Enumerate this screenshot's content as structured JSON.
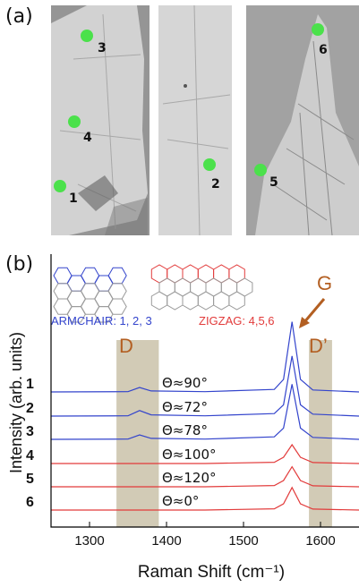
{
  "panel_a": {
    "label": "(a)",
    "images": [
      {
        "markers": [
          {
            "label": "3"
          },
          {
            "label": "4"
          },
          {
            "label": "1"
          }
        ]
      },
      {
        "markers": [
          {
            "label": "2"
          }
        ]
      },
      {
        "markers": [
          {
            "label": "6"
          },
          {
            "label": "5"
          }
        ]
      }
    ],
    "marker_color": "#4be14b"
  },
  "panel_b": {
    "label": "(b)",
    "legend": {
      "armchair_text": "ARMCHAIR: 1, 2, 3",
      "zigzag_text": "ZIGZAG: 4,5,6",
      "armchair_color": "#3344cc",
      "zigzag_color": "#e23b3b"
    },
    "peak_labels": {
      "D": "D",
      "G": "G",
      "D_prime": "D’"
    },
    "band_color": "#d2cbb6",
    "peak_label_color": "#b35f22"
  },
  "chart_data": {
    "type": "line",
    "xlabel": "Raman Shift (cm⁻¹)",
    "ylabel": "Intensity (arb. units)",
    "xlim": [
      1250,
      1650
    ],
    "x_ticks": [
      1300,
      1400,
      1500,
      1600
    ],
    "y_ticks": [],
    "shaded_bands": [
      {
        "name": "D",
        "range": [
          1335,
          1390
        ]
      },
      {
        "name": "D’",
        "range": [
          1585,
          1615
        ]
      }
    ],
    "series": [
      {
        "name": "1",
        "angle": "Θ≈90°",
        "color": "#3344cc",
        "values": [
          [
            1250,
            0.0
          ],
          [
            1350,
            0.01
          ],
          [
            1365,
            0.18
          ],
          [
            1380,
            0.04
          ],
          [
            1450,
            0.01
          ],
          [
            1540,
            0.1
          ],
          [
            1552,
            0.5
          ],
          [
            1563,
            2.8
          ],
          [
            1574,
            0.5
          ],
          [
            1590,
            0.08
          ],
          [
            1650,
            0.0
          ]
        ]
      },
      {
        "name": "2",
        "angle": "Θ≈72°",
        "color": "#3344cc",
        "values": [
          [
            1250,
            0.0
          ],
          [
            1350,
            0.01
          ],
          [
            1365,
            0.22
          ],
          [
            1380,
            0.05
          ],
          [
            1450,
            0.01
          ],
          [
            1540,
            0.1
          ],
          [
            1552,
            0.45
          ],
          [
            1563,
            2.4
          ],
          [
            1574,
            0.45
          ],
          [
            1590,
            0.08
          ],
          [
            1650,
            0.0
          ]
        ]
      },
      {
        "name": "3",
        "angle": "Θ≈78°",
        "color": "#3344cc",
        "values": [
          [
            1250,
            0.0
          ],
          [
            1350,
            0.01
          ],
          [
            1365,
            0.18
          ],
          [
            1380,
            0.04
          ],
          [
            1450,
            0.01
          ],
          [
            1540,
            0.1
          ],
          [
            1552,
            0.45
          ],
          [
            1563,
            2.2
          ],
          [
            1574,
            0.45
          ],
          [
            1590,
            0.08
          ],
          [
            1650,
            0.0
          ]
        ]
      },
      {
        "name": "4",
        "angle": "Θ≈100°",
        "color": "#e23b3b",
        "values": [
          [
            1250,
            0.0
          ],
          [
            1350,
            0.0
          ],
          [
            1450,
            0.0
          ],
          [
            1540,
            0.05
          ],
          [
            1552,
            0.25
          ],
          [
            1563,
            0.75
          ],
          [
            1574,
            0.25
          ],
          [
            1590,
            0.04
          ],
          [
            1650,
            0.0
          ]
        ]
      },
      {
        "name": "5",
        "angle": "Θ≈120°",
        "color": "#e23b3b",
        "values": [
          [
            1250,
            0.0
          ],
          [
            1350,
            0.0
          ],
          [
            1450,
            0.0
          ],
          [
            1540,
            0.05
          ],
          [
            1552,
            0.25
          ],
          [
            1563,
            0.8
          ],
          [
            1574,
            0.25
          ],
          [
            1590,
            0.04
          ],
          [
            1650,
            0.0
          ]
        ]
      },
      {
        "name": "6",
        "angle": "Θ≈0°",
        "color": "#e23b3b",
        "values": [
          [
            1250,
            0.0
          ],
          [
            1350,
            0.0
          ],
          [
            1450,
            0.0
          ],
          [
            1540,
            0.05
          ],
          [
            1552,
            0.25
          ],
          [
            1563,
            0.9
          ],
          [
            1574,
            0.25
          ],
          [
            1590,
            0.04
          ],
          [
            1650,
            0.0
          ]
        ]
      }
    ]
  }
}
